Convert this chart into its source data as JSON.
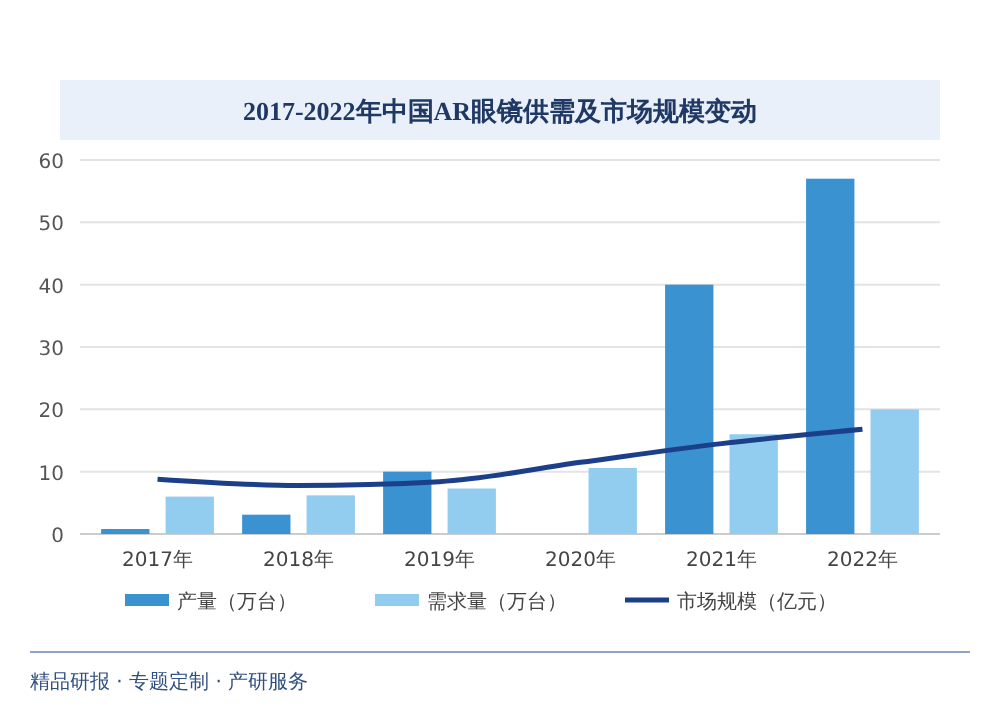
{
  "chart_data": {
    "type": "bar",
    "title": "2017-2022年中国AR眼镜供需及市场规模变动",
    "categories": [
      "2017年",
      "2018年",
      "2019年",
      "2020年",
      "2021年",
      "2022年"
    ],
    "series": [
      {
        "name": "产量（万台）",
        "color": "#3a93d0",
        "values": [
          0.8,
          3.1,
          10,
          null,
          40,
          57
        ]
      },
      {
        "name": "需求量（万台）",
        "color": "#92cdf0",
        "values": [
          6,
          6.2,
          7.3,
          10.6,
          16,
          20
        ]
      },
      {
        "name": "市场规模（亿元）",
        "type": "line",
        "color": "#1c3f8a",
        "values": [
          8.8,
          7.8,
          8.4,
          11.5,
          14.5,
          16.8
        ]
      }
    ],
    "ylim": [
      0,
      60
    ],
    "yticks": [
      0,
      10,
      20,
      30,
      40,
      50,
      60
    ],
    "grid": "y",
    "legend": "bottom",
    "marker": "none",
    "annotations": [
      "精品研报 · 专题定制 · 产研服务"
    ]
  }
}
